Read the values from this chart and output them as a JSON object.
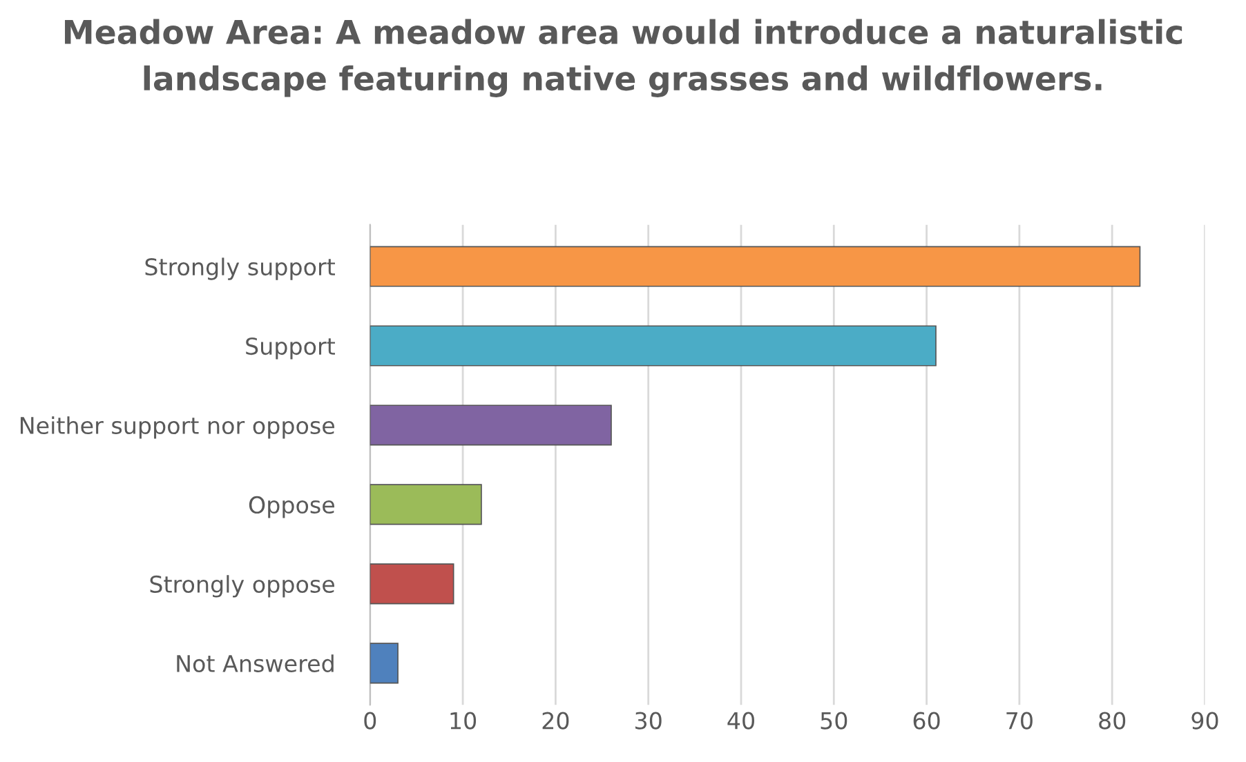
{
  "chart_data": {
    "type": "bar",
    "orientation": "horizontal",
    "title": "Meadow Area: A meadow area would introduce a naturalistic landscape featuring native grasses and wildflowers.",
    "categories": [
      "Strongly support",
      "Support",
      "Neither support nor oppose",
      "Oppose",
      "Strongly oppose",
      "Not Answered"
    ],
    "values": [
      83,
      61,
      26,
      12,
      9,
      3
    ],
    "colors": [
      "#f79646",
      "#4bacc6",
      "#8064a2",
      "#9bbb59",
      "#c0504d",
      "#4f81bd"
    ],
    "xlim": [
      0,
      90
    ],
    "xticks": [
      0,
      10,
      20,
      30,
      40,
      50,
      60,
      70,
      80,
      90
    ],
    "grid": "x"
  }
}
